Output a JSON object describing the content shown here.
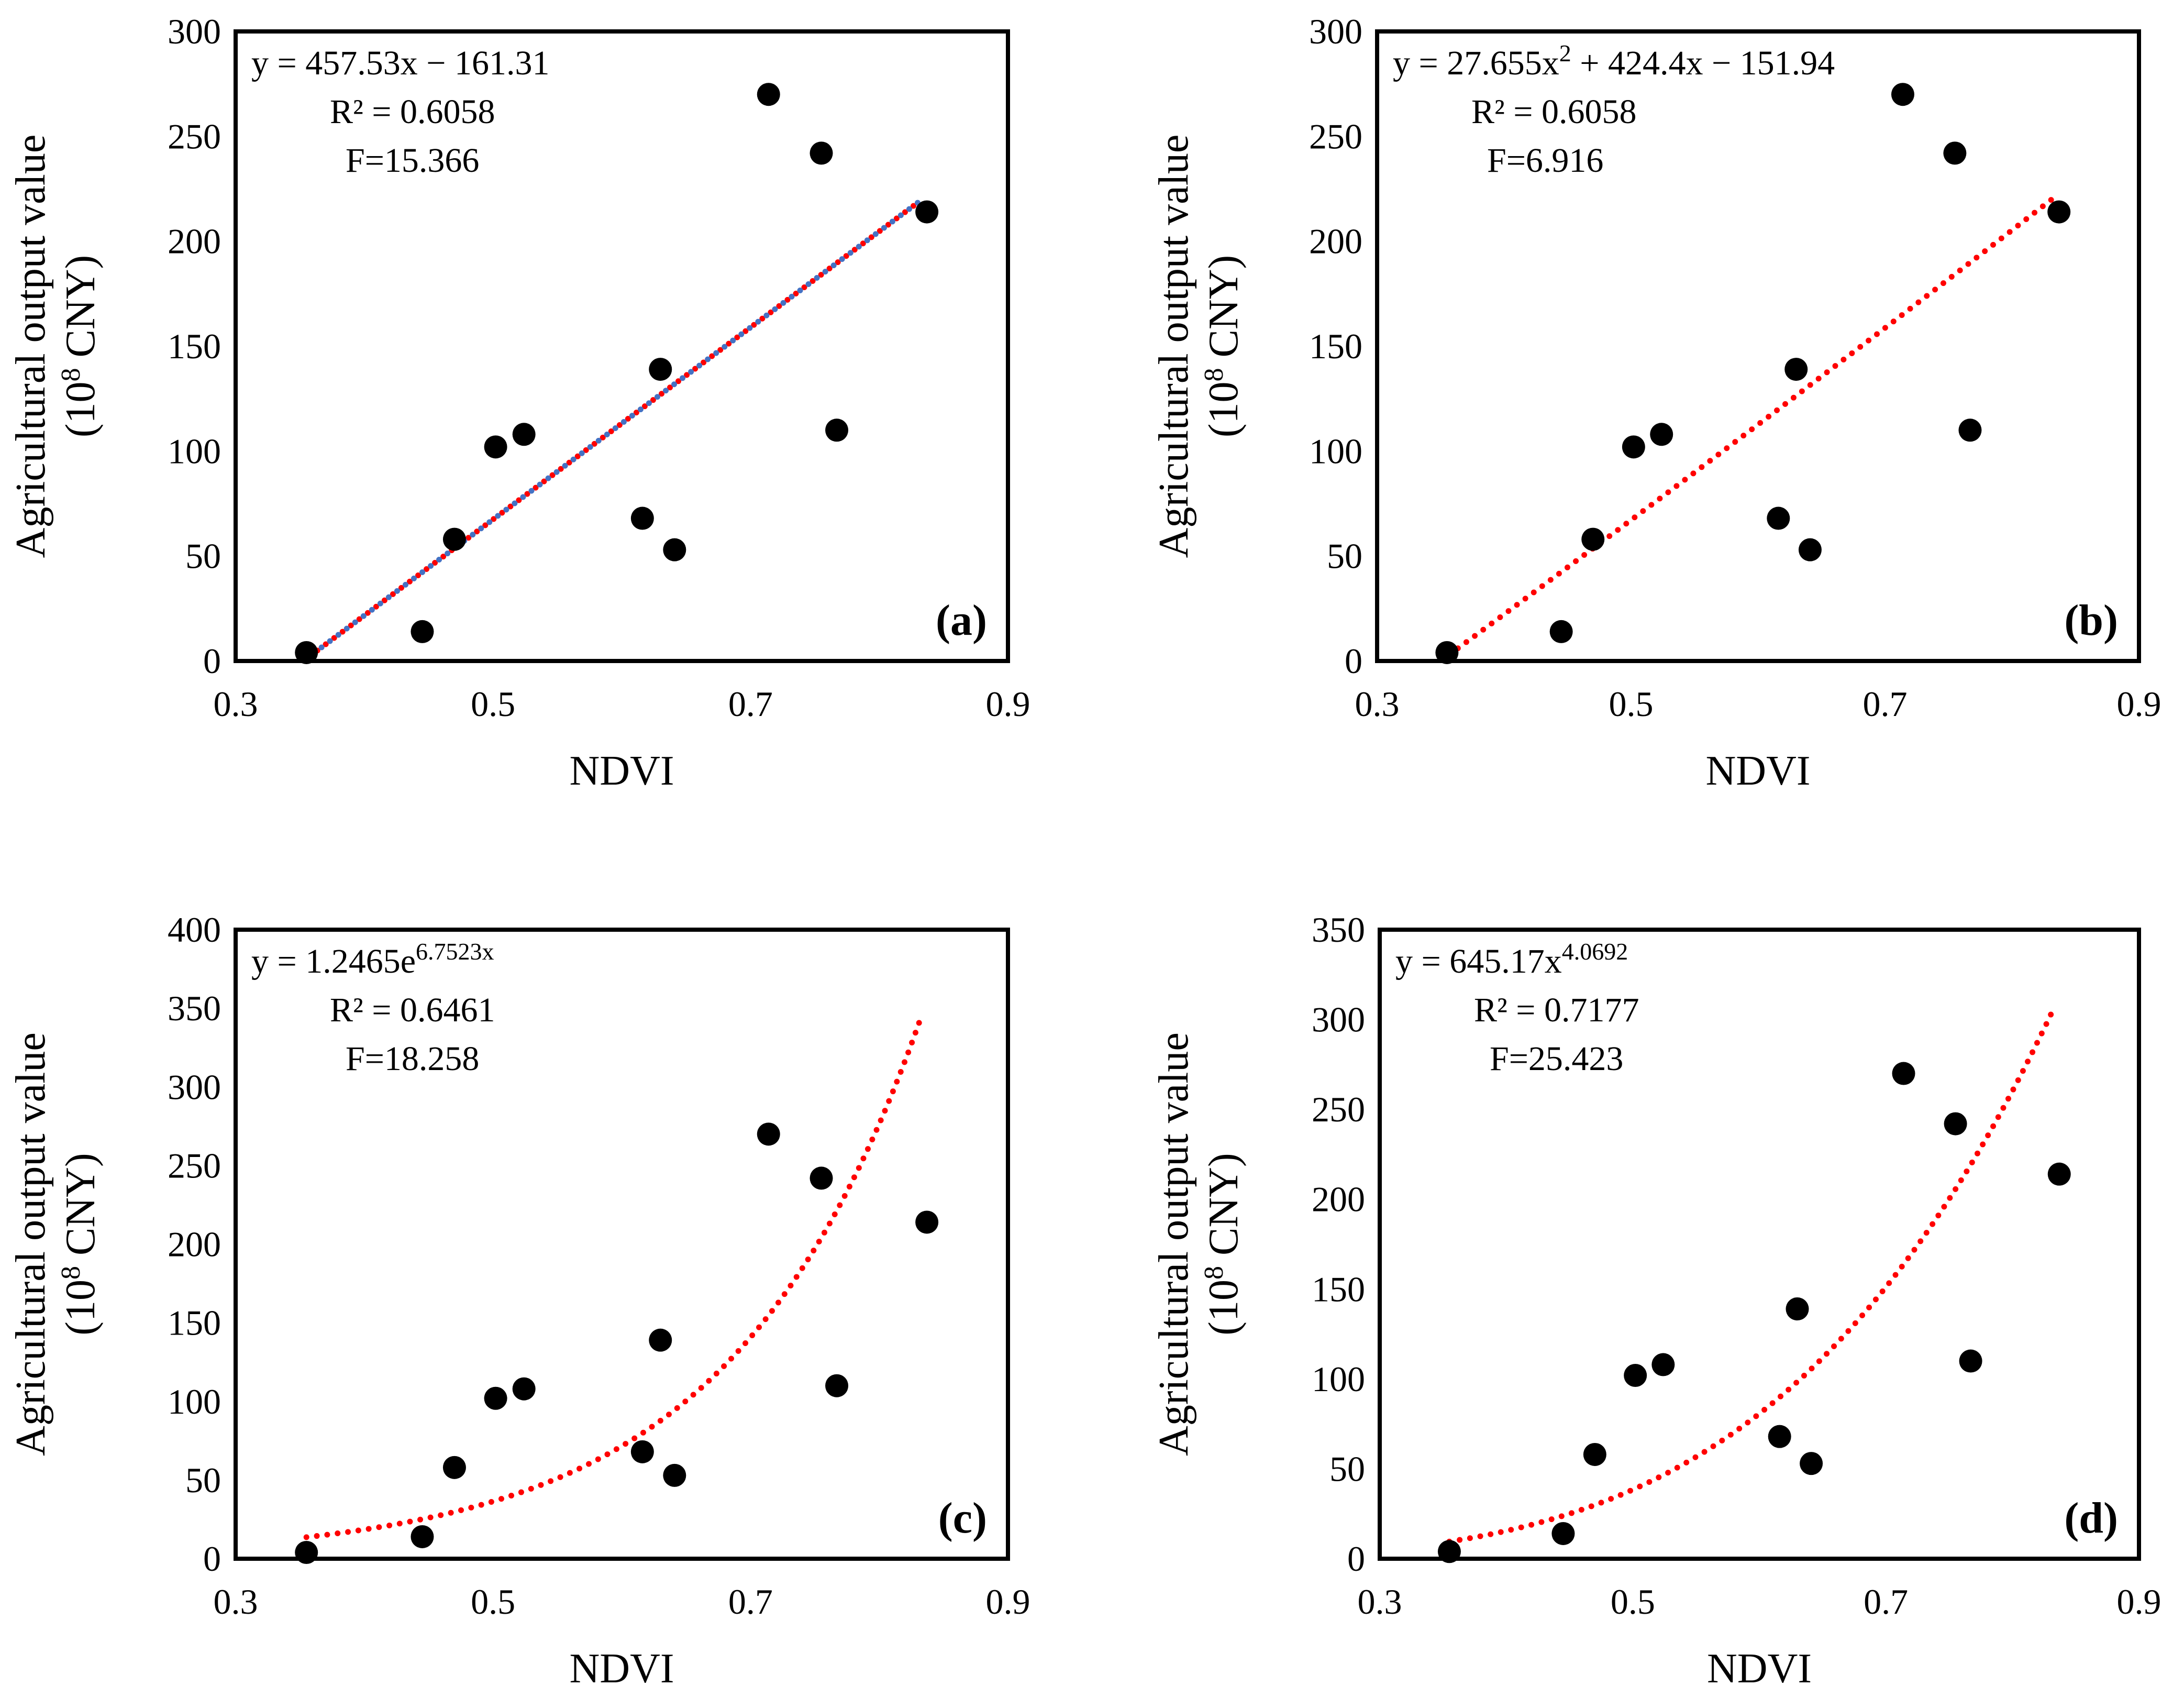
{
  "figure": {
    "ylabel_line1": "Agricultural output value",
    "ylabel_line2_prefix": "(10",
    "ylabel_line2_sup": "8",
    "ylabel_line2_suffix": " CNY)",
    "xlabel": "NDVI"
  },
  "colors": {
    "point": "#000000",
    "trend_red": "#ff0000",
    "trend_blue": "#4472c4",
    "frame": "#000000"
  },
  "chart_data": [
    {
      "type": "scatter",
      "panel": "(a)",
      "fit": "linear",
      "equation": {
        "prefix": "y = 457.53x − 161.31",
        "sup": "",
        "suffix": ""
      },
      "r2": "R² = 0.6058",
      "f": "F=15.366",
      "xlabel": "NDVI",
      "ylabel": "Agricultural output value (10^8 CNY)",
      "xlim": [
        0.3,
        0.9
      ],
      "ylim": [
        0,
        300
      ],
      "xticks": [
        0.3,
        0.5,
        0.7,
        0.9
      ],
      "yticks": [
        0,
        50,
        100,
        150,
        200,
        250,
        300
      ],
      "x": [
        0.355,
        0.445,
        0.47,
        0.502,
        0.524,
        0.616,
        0.63,
        0.641,
        0.714,
        0.755,
        0.767,
        0.837
      ],
      "y": [
        4,
        14,
        58,
        102,
        108,
        68,
        139,
        53,
        270,
        242,
        110,
        214
      ],
      "trend_x_range": [
        0.357,
        0.832
      ],
      "coeffs": {
        "a": 457.53,
        "b": -161.31
      },
      "dual_line": true
    },
    {
      "type": "scatter",
      "panel": "(b)",
      "fit": "polynomial",
      "equation": {
        "prefix": "y = 27.655x",
        "sup": "2",
        "suffix": " + 424.4x − 151.94"
      },
      "r2": "R² = 0.6058",
      "f": "F=6.916",
      "xlabel": "NDVI",
      "ylabel": "Agricultural output value (10^8 CNY)",
      "xlim": [
        0.3,
        0.9
      ],
      "ylim": [
        0,
        300
      ],
      "xticks": [
        0.3,
        0.5,
        0.7,
        0.9
      ],
      "yticks": [
        0,
        50,
        100,
        150,
        200,
        250,
        300
      ],
      "x": [
        0.355,
        0.445,
        0.47,
        0.502,
        0.524,
        0.616,
        0.63,
        0.641,
        0.714,
        0.755,
        0.767,
        0.837
      ],
      "y": [
        4,
        14,
        58,
        102,
        108,
        68,
        139,
        53,
        270,
        242,
        110,
        214
      ],
      "trend_x_range": [
        0.357,
        0.832
      ],
      "coeffs": {
        "a": 27.655,
        "b": 424.4,
        "c": -151.94
      },
      "dual_line": false
    },
    {
      "type": "scatter",
      "panel": "(c)",
      "fit": "exponential",
      "equation": {
        "prefix": "y = 1.2465e",
        "sup": "6.7523x",
        "suffix": ""
      },
      "r2": "R² = 0.6461",
      "f": "F=18.258",
      "xlabel": "NDVI",
      "ylabel": "Agricultural output value (10^8 CNY)",
      "xlim": [
        0.3,
        0.9
      ],
      "ylim": [
        0,
        400
      ],
      "xticks": [
        0.3,
        0.5,
        0.7,
        0.9
      ],
      "yticks": [
        0,
        50,
        100,
        150,
        200,
        250,
        300,
        350,
        400
      ],
      "x": [
        0.355,
        0.445,
        0.47,
        0.502,
        0.524,
        0.616,
        0.63,
        0.641,
        0.714,
        0.755,
        0.767,
        0.837
      ],
      "y": [
        4,
        14,
        58,
        102,
        108,
        68,
        139,
        53,
        270,
        242,
        110,
        214
      ],
      "trend_x_range": [
        0.355,
        0.832
      ],
      "coeffs": {
        "a": 1.2465,
        "b": 6.7523
      },
      "dual_line": false
    },
    {
      "type": "scatter",
      "panel": "(d)",
      "fit": "power",
      "equation": {
        "prefix": "y = 645.17x",
        "sup": "4.0692",
        "suffix": ""
      },
      "r2": "R² = 0.7177",
      "f": "F=25.423",
      "xlabel": "NDVI",
      "ylabel": "Agricultural output value (10^8 CNY)",
      "xlim": [
        0.3,
        0.9
      ],
      "ylim": [
        0,
        350
      ],
      "xticks": [
        0.3,
        0.5,
        0.7,
        0.9
      ],
      "yticks": [
        0,
        50,
        100,
        150,
        200,
        250,
        300,
        350
      ],
      "x": [
        0.355,
        0.445,
        0.47,
        0.502,
        0.524,
        0.616,
        0.63,
        0.641,
        0.714,
        0.755,
        0.767,
        0.837
      ],
      "y": [
        4,
        14,
        58,
        102,
        108,
        68,
        139,
        53,
        270,
        242,
        110,
        214
      ],
      "trend_x_range": [
        0.355,
        0.832
      ],
      "coeffs": {
        "a": 645.17,
        "b": 4.0692
      },
      "dual_line": false
    }
  ]
}
